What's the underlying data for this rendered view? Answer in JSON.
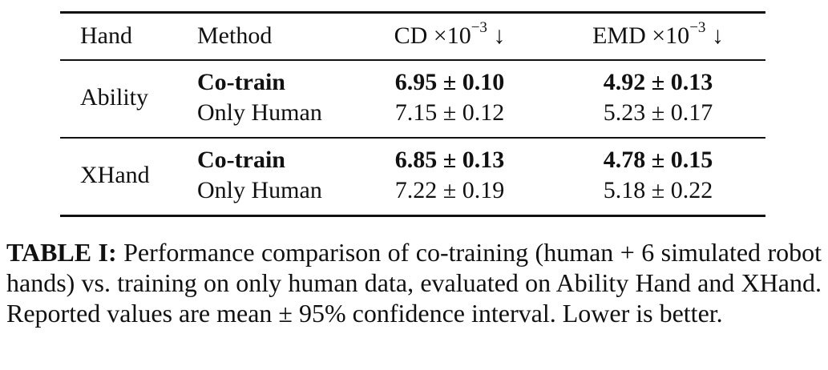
{
  "table": {
    "header": [
      "Hand",
      "Method",
      {
        "base": "CD ×10",
        "sup": "−3",
        "arrow": "↓"
      },
      {
        "base": "EMD ×10",
        "sup": "−3",
        "arrow": "↓"
      }
    ],
    "groups": [
      {
        "hand": "Ability",
        "rows": [
          {
            "method": "Co-train",
            "cd": "6.95 ± 0.10",
            "emd": "4.92 ± 0.13",
            "bold": true
          },
          {
            "method": "Only Human",
            "cd": "7.15 ± 0.12",
            "emd": "5.23 ± 0.17",
            "bold": false
          }
        ]
      },
      {
        "hand": "XHand",
        "rows": [
          {
            "method": "Co-train",
            "cd": "6.85 ± 0.13",
            "emd": "4.78 ± 0.15",
            "bold": true
          },
          {
            "method": "Only Human",
            "cd": "7.22 ± 0.19",
            "emd": "5.18 ± 0.22",
            "bold": false
          }
        ]
      }
    ]
  },
  "caption": {
    "label": "TABLE I:",
    "text": "Performance comparison of co-training (human + 6 simulated robot hands) vs. training on only human data, evaluated on Ability Hand and XHand. Reported values are mean ± 95% confidence interval. Lower is better."
  }
}
